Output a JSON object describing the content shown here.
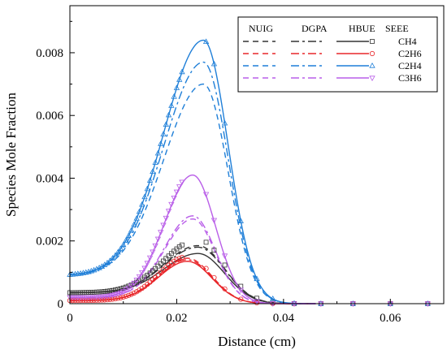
{
  "chart_data": {
    "type": "line",
    "title": "",
    "xlabel": "Distance (cm)",
    "ylabel": "Species Mole Fraction",
    "xlim": [
      0,
      0.07
    ],
    "ylim": [
      0,
      0.0095
    ],
    "x_ticks": [
      0,
      0.02,
      0.04,
      0.06
    ],
    "x_tick_labels": [
      "0",
      "0.02",
      "0.04",
      "0.06"
    ],
    "y_ticks": [
      0,
      0.002,
      0.004,
      0.006,
      0.008
    ],
    "y_tick_labels": [
      "0",
      "0.002",
      "0.004",
      "0.006",
      "0.008"
    ],
    "grid": false,
    "legend_position": "top-right",
    "legend": {
      "model_headers": [
        "NUIG",
        "DGPA",
        "HBUE",
        "SEEE"
      ],
      "species_labels": [
        "CH4",
        "C2H6",
        "C2H4",
        "C3H6"
      ]
    },
    "colors": {
      "CH4": "#333333",
      "C2H6": "#e8262a",
      "C2H4": "#1f7fd8",
      "C3H6": "#b95ee8"
    },
    "species_profiles": [
      {
        "species": "CH4",
        "start": 0.00035,
        "peak_x": 0.024,
        "width_left": 0.009,
        "width_right": 0.007
      },
      {
        "species": "C2H6",
        "start": 0.0001,
        "peak_x": 0.022,
        "width_left": 0.0075,
        "width_right": 0.0065
      },
      {
        "species": "C2H4",
        "start": 0.0009,
        "peak_x": 0.025,
        "width_left": 0.0105,
        "width_right": 0.0065
      },
      {
        "species": "C3H6",
        "start": 0.0002,
        "peak_x": 0.023,
        "width_left": 0.0075,
        "width_right": 0.006
      }
    ],
    "series": [
      {
        "name": "CH4",
        "model": "NUIG",
        "peak": 0.00185
      },
      {
        "name": "CH4",
        "model": "DGPA",
        "peak": 0.0018
      },
      {
        "name": "CH4",
        "model": "HBUE",
        "peak": 0.0016
      },
      {
        "name": "CH4",
        "model": "SEEE",
        "peak": 0.00205
      },
      {
        "name": "C2H6",
        "model": "NUIG",
        "peak": 0.00145
      },
      {
        "name": "C2H6",
        "model": "DGPA",
        "peak": 0.0014
      },
      {
        "name": "C2H6",
        "model": "HBUE",
        "peak": 0.00135
      },
      {
        "name": "C2H6",
        "model": "SEEE",
        "peak": 0.0015
      },
      {
        "name": "C2H4",
        "model": "NUIG",
        "peak": 0.007
      },
      {
        "name": "C2H4",
        "model": "DGPA",
        "peak": 0.0077
      },
      {
        "name": "C2H4",
        "model": "HBUE",
        "peak": 0.0084
      },
      {
        "name": "C2H4",
        "model": "SEEE",
        "peak": 0.0084
      },
      {
        "name": "C3H6",
        "model": "NUIG",
        "peak": 0.0027
      },
      {
        "name": "C3H6",
        "model": "DGPA",
        "peak": 0.0028
      },
      {
        "name": "C3H6",
        "model": "HBUE",
        "peak": 0.0041
      },
      {
        "name": "C3H6",
        "model": "SEEE",
        "peak": 0.00415
      }
    ]
  }
}
